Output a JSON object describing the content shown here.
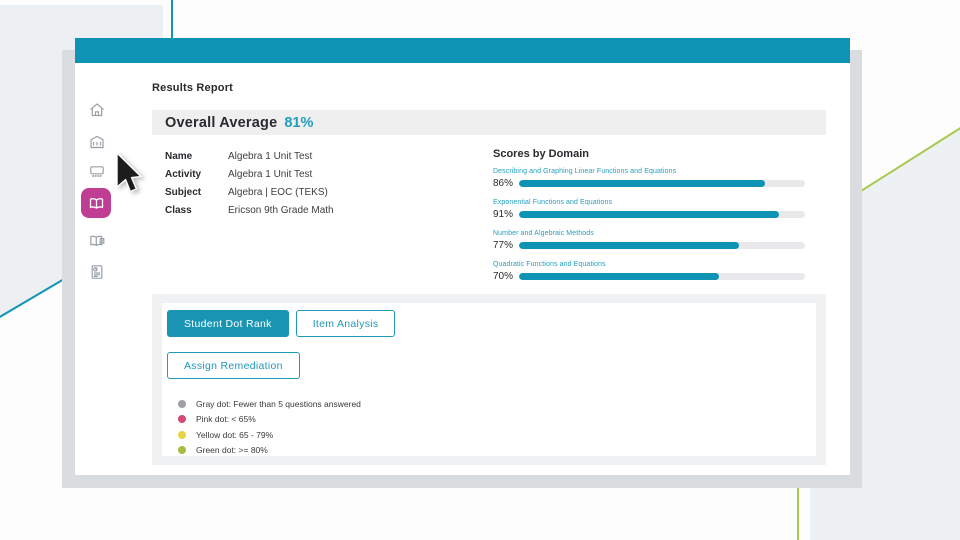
{
  "colors": {
    "header_teal": "#0e93b4",
    "accent_teal_text": "#1e9dbf",
    "active_nav_pink": "#bf3d92",
    "bar_fill": "#0f93b4",
    "bar_track": "#e9e9eb",
    "bg_left_panel": "#edf0f3",
    "bg_bottom_right": "#edf1f4",
    "deco_teal_line": "#1095b5",
    "deco_green_line": "#a8c84e"
  },
  "sidebar": {
    "items": [
      {
        "icon": "home-icon",
        "active": false
      },
      {
        "icon": "school-building-icon",
        "active": false
      },
      {
        "icon": "classroom-board-icon",
        "active": false
      },
      {
        "icon": "open-book-icon",
        "active": true
      },
      {
        "icon": "book-chapter-icon",
        "active": false
      },
      {
        "icon": "report-document-icon",
        "active": false
      }
    ]
  },
  "report": {
    "title": "Results Report",
    "overall_label": "Overall Average",
    "overall_value": "81%",
    "details": [
      {
        "label": "Name",
        "value": "Algebra 1 Unit Test"
      },
      {
        "label": "Activity",
        "value": "Algebra 1 Unit Test"
      },
      {
        "label": "Subject",
        "value": "Algebra | EOC (TEKS)"
      },
      {
        "label": "Class",
        "value": "Ericson 9th Grade Math"
      }
    ],
    "domains": {
      "title": "Scores by Domain",
      "items": [
        {
          "label": "Describing and Graphing Linear Functions and Equations",
          "value": 86,
          "display": "86%"
        },
        {
          "label": "Exponential Functions and Equations",
          "value": 91,
          "display": "91%"
        },
        {
          "label": "Number and Algebraic Methods",
          "value": 77,
          "display": "77%"
        },
        {
          "label": "Quadratic Functions and Equations",
          "value": 70,
          "display": "70%"
        }
      ]
    }
  },
  "actions": {
    "rows": [
      [
        {
          "label": "Student Dot Rank",
          "style": "filled"
        },
        {
          "label": "Item Analysis",
          "style": "outline"
        }
      ],
      [
        {
          "label": "Assign Remediation",
          "style": "outline"
        }
      ]
    ]
  },
  "legend": {
    "items": [
      {
        "color": "#9fa0a4",
        "label": "Gray dot: Fewer than 5 questions answered"
      },
      {
        "color": "#d44a73",
        "label": "Pink dot: < 65%"
      },
      {
        "color": "#e8d443",
        "label": "Yellow dot: 65 - 79%"
      },
      {
        "color": "#a5bc3f",
        "label": "Green dot: >= 80%"
      }
    ]
  }
}
